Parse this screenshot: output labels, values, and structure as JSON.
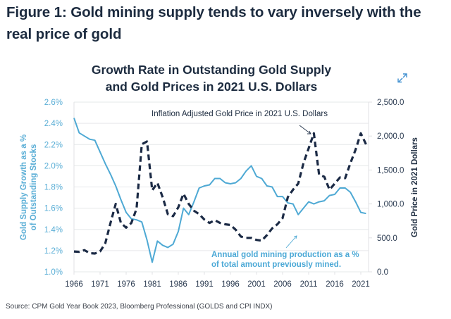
{
  "figure_title": "Figure 1: Gold mining supply tends to vary inversely with the real price of gold",
  "expand_icon": "expand-arrows-icon",
  "source": "Source: CPM Gold Year Book 2023, Bloomberg Professional (GOLDS and CPI INDX)",
  "colors": {
    "supply": "#4ea9d4",
    "price": "#1b2a45",
    "grid": "#e6e8ea",
    "left_axis_text": "#5aaed6",
    "right_axis_text": "#2a3a50"
  },
  "chart_data": {
    "type": "line",
    "title": "Growth Rate in Outstanding Gold Supply and Gold Prices in 2021 U.S. Dollars",
    "title_lines": [
      "Growth Rate in Outstanding Gold Supply",
      "and Gold Prices in 2021 U.S. Dollars"
    ],
    "xlabel": "",
    "ylabel_left_lines": [
      "Gold Supply Growth as a %",
      "of Outstanding Stocks"
    ],
    "ylabel_right": "Gold Price in 2021 Dollars",
    "xlim": [
      1966,
      2022
    ],
    "ylim_left": [
      1.0,
      2.6
    ],
    "ylim_right": [
      0,
      2500
    ],
    "grid": true,
    "x_ticks": [
      "1966",
      "1971",
      "1976",
      "1981",
      "1986",
      "1991",
      "1996",
      "2001",
      "2006",
      "2011",
      "2016",
      "2021"
    ],
    "y_ticks_left": [
      "2.6%",
      "2.4%",
      "2.2%",
      "2.0%",
      "1.8%",
      "1.6%",
      "1.4%",
      "1.2%",
      "1.0%"
    ],
    "y_ticks_right": [
      "2,500.0",
      "2,000.0",
      "1,500.0",
      "1,000.0",
      "500.0",
      "0.0"
    ],
    "x": [
      1966,
      1967,
      1968,
      1969,
      1970,
      1971,
      1972,
      1973,
      1974,
      1975,
      1976,
      1977,
      1978,
      1979,
      1980,
      1981,
      1982,
      1983,
      1984,
      1985,
      1986,
      1987,
      1988,
      1989,
      1990,
      1991,
      1992,
      1993,
      1994,
      1995,
      1996,
      1997,
      1998,
      1999,
      2000,
      2001,
      2002,
      2003,
      2004,
      2005,
      2006,
      2007,
      2008,
      2009,
      2010,
      2011,
      2012,
      2013,
      2014,
      2015,
      2016,
      2017,
      2018,
      2019,
      2020,
      2021,
      2022
    ],
    "series": [
      {
        "name": "Annual gold mining production as a % of total amount previously mined.",
        "axis": "left",
        "style": "solid",
        "values": [
          2.45,
          2.31,
          2.28,
          2.25,
          2.24,
          2.13,
          2.02,
          1.92,
          1.81,
          1.68,
          1.56,
          1.5,
          1.49,
          1.47,
          1.3,
          1.09,
          1.29,
          1.25,
          1.23,
          1.26,
          1.38,
          1.6,
          1.54,
          1.66,
          1.79,
          1.81,
          1.82,
          1.88,
          1.88,
          1.84,
          1.83,
          1.84,
          1.88,
          1.95,
          2.0,
          1.9,
          1.88,
          1.81,
          1.8,
          1.71,
          1.71,
          1.65,
          1.64,
          1.54,
          1.6,
          1.66,
          1.64,
          1.66,
          1.67,
          1.72,
          1.73,
          1.79,
          1.79,
          1.75,
          1.66,
          1.56,
          1.55
        ]
      },
      {
        "name": "Inflation Adjusted Gold Price in 2021 U.S. Dollars",
        "axis": "right",
        "style": "dashed",
        "values": [
          300,
          295,
          320,
          275,
          270,
          300,
          420,
          720,
          1000,
          720,
          650,
          720,
          930,
          1880,
          1920,
          1200,
          1310,
          1100,
          850,
          820,
          950,
          1150,
          1000,
          900,
          850,
          770,
          720,
          760,
          720,
          700,
          690,
          620,
          520,
          500,
          500,
          470,
          460,
          540,
          640,
          700,
          790,
          1100,
          1210,
          1300,
          1600,
          1820,
          2040,
          1430,
          1400,
          1210,
          1300,
          1390,
          1380,
          1600,
          1800,
          2040,
          1880
        ]
      }
    ],
    "annotations": [
      {
        "text": "Inflation Adjusted Gold Price in 2021 U.S. Dollars",
        "target_series": 1,
        "arrow": true
      },
      {
        "text_lines": [
          "Annual gold mining production as a %",
          "of total amount previously mined."
        ],
        "target_series": 0,
        "arrow": true
      }
    ]
  }
}
